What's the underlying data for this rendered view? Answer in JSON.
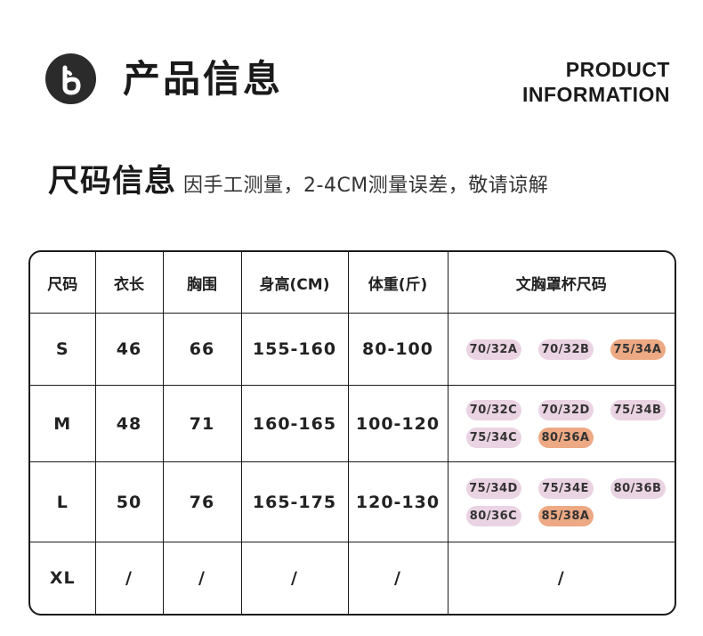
{
  "header": {
    "logo_letter": "b",
    "title_cn": "产品信息",
    "title_en_line1": "PRODUCT",
    "title_en_line2": "INFORMATION"
  },
  "size_section": {
    "title": "尺码信息",
    "note": "因手工测量，2-4CM测量误差，敬请谅解"
  },
  "colors": {
    "cup_pink": "#ead3e3",
    "cup_orange": "#eca983",
    "logo_bg": "#2b2b2b"
  },
  "table": {
    "headers": [
      "尺码",
      "衣长",
      "胸围",
      "身高(CM)",
      "体重(斤)",
      "文胸罩杯尺码"
    ],
    "rows": [
      {
        "size": "S",
        "length": "46",
        "bust": "66",
        "height": "155-160",
        "weight": "80-100",
        "cups": [
          {
            "label": "70/32A",
            "color": "pink"
          },
          {
            "label": "70/32B",
            "color": "pink"
          },
          {
            "label": "75/34A",
            "color": "orange"
          }
        ]
      },
      {
        "size": "M",
        "length": "48",
        "bust": "71",
        "height": "160-165",
        "weight": "100-120",
        "cups": [
          {
            "label": "70/32C",
            "color": "pink"
          },
          {
            "label": "70/32D",
            "color": "pink"
          },
          {
            "label": "75/34B",
            "color": "pink"
          },
          {
            "label": "75/34C",
            "color": "pink"
          },
          {
            "label": "80/36A",
            "color": "orange"
          }
        ]
      },
      {
        "size": "L",
        "length": "50",
        "bust": "76",
        "height": "165-175",
        "weight": "120-130",
        "cups": [
          {
            "label": "75/34D",
            "color": "pink"
          },
          {
            "label": "75/34E",
            "color": "pink"
          },
          {
            "label": "80/36B",
            "color": "pink"
          },
          {
            "label": "80/36C",
            "color": "pink"
          },
          {
            "label": "85/38A",
            "color": "orange"
          }
        ]
      },
      {
        "size": "XL",
        "length": "/",
        "bust": "/",
        "height": "/",
        "weight": "/",
        "cups_text": "/"
      }
    ]
  }
}
